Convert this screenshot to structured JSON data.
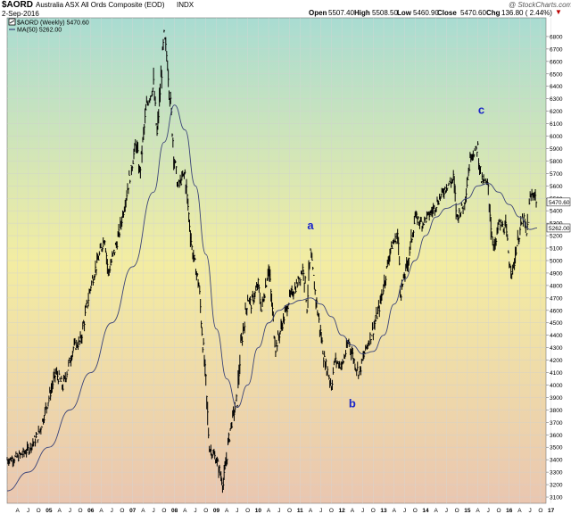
{
  "header": {
    "symbol": "$AORD",
    "description": "Australia ASX All Ords Composite (EOD)",
    "exchange": "INDX",
    "date": "2-Sep-2016",
    "open_label": "Open",
    "open": "5507.40",
    "high_label": "High",
    "high": "5508.50",
    "low_label": "Low",
    "low": "5460.90",
    "close_label": "Close",
    "close": "5470.60",
    "chg_label": "Chg",
    "chg": "136.80 ( 2.44%)",
    "chg_arrow": "▼",
    "watermark": "@ StockCharts.com"
  },
  "legend": {
    "price": "$AORD (Weekly) 5470.60",
    "ma": "MA(50) 5262.00"
  },
  "colors": {
    "bg_top": "#a9dcd2",
    "bg_mid": "#f3eda2",
    "bg_bottom": "#eac6b0",
    "price": "#000000",
    "ma": "#3a4378",
    "wave_label": "#1a25c8",
    "tag_fill": "#ffffff"
  },
  "chart_data": {
    "type": "line",
    "x_unit": "week",
    "x_start": "2004-01",
    "x_end": "2016-09",
    "ylim": [
      3050,
      6950
    ],
    "y_ticks": [
      3100,
      3200,
      3300,
      3400,
      3500,
      3600,
      3700,
      3800,
      3900,
      4000,
      4100,
      4200,
      4300,
      4400,
      4500,
      4600,
      4700,
      4800,
      4900,
      5000,
      5100,
      5200,
      5300,
      5400,
      5500,
      5600,
      5700,
      5800,
      5900,
      6000,
      6100,
      6200,
      6300,
      6400,
      6500,
      6600,
      6700,
      6800
    ],
    "month_labels": [
      "A",
      "J",
      "O",
      "05",
      "A",
      "J",
      "O",
      "06",
      "A",
      "J",
      "O",
      "07",
      "A",
      "J",
      "O",
      "08",
      "A",
      "J",
      "O",
      "09",
      "A",
      "J",
      "O",
      "10",
      "A",
      "J",
      "O",
      "11",
      "A",
      "J",
      "O",
      "12",
      "A",
      "J",
      "O",
      "13",
      "A",
      "J",
      "O",
      "14",
      "A",
      "J",
      "O",
      "15",
      "A",
      "J",
      "O",
      "16",
      "A",
      "J",
      "O",
      "17"
    ],
    "series": [
      {
        "name": "$AORD (Weekly)",
        "style": "weekly-bars",
        "points": [
          [
            "2004-01",
            3400
          ],
          [
            "2004-04",
            3420
          ],
          [
            "2004-07",
            3480
          ],
          [
            "2004-10",
            3600
          ],
          [
            "2005-01",
            3900
          ],
          [
            "2005-03",
            4100
          ],
          [
            "2005-05",
            3990
          ],
          [
            "2005-08",
            4300
          ],
          [
            "2005-10",
            4350
          ],
          [
            "2006-01",
            4800
          ],
          [
            "2006-03",
            5000
          ],
          [
            "2006-05",
            5200
          ],
          [
            "2006-06",
            4900
          ],
          [
            "2006-09",
            5200
          ],
          [
            "2006-12",
            5650
          ],
          [
            "2007-02",
            5950
          ],
          [
            "2007-03",
            5700
          ],
          [
            "2007-05",
            6250
          ],
          [
            "2007-07",
            6400
          ],
          [
            "2007-08",
            6000
          ],
          [
            "2007-10",
            6800
          ],
          [
            "2007-11",
            6600
          ],
          [
            "2008-01",
            5800
          ],
          [
            "2008-02",
            5600
          ],
          [
            "2008-04",
            5700
          ],
          [
            "2008-06",
            5100
          ],
          [
            "2008-08",
            4800
          ],
          [
            "2008-10",
            4000
          ],
          [
            "2008-11",
            3500
          ],
          [
            "2009-01",
            3400
          ],
          [
            "2009-03",
            3200
          ],
          [
            "2009-05",
            3650
          ],
          [
            "2009-07",
            3900
          ],
          [
            "2009-08",
            4300
          ],
          [
            "2009-10",
            4700
          ],
          [
            "2009-11",
            4650
          ],
          [
            "2010-01",
            4800
          ],
          [
            "2010-02",
            4600
          ],
          [
            "2010-04",
            4950
          ],
          [
            "2010-06",
            4300
          ],
          [
            "2010-08",
            4500
          ],
          [
            "2010-10",
            4700
          ],
          [
            "2010-12",
            4800
          ],
          [
            "2011-02",
            4950
          ],
          [
            "2011-03",
            4650
          ],
          [
            "2011-04",
            5050
          ],
          [
            "2011-06",
            4600
          ],
          [
            "2011-08",
            4200
          ],
          [
            "2011-10",
            4000
          ],
          [
            "2011-11",
            4200
          ],
          [
            "2012-01",
            4150
          ],
          [
            "2012-03",
            4350
          ],
          [
            "2012-05",
            4150
          ],
          [
            "2012-06",
            4100
          ],
          [
            "2012-08",
            4300
          ],
          [
            "2012-10",
            4450
          ],
          [
            "2012-12",
            4650
          ],
          [
            "2013-03",
            5100
          ],
          [
            "2013-05",
            5200
          ],
          [
            "2013-06",
            4750
          ],
          [
            "2013-08",
            5000
          ],
          [
            "2013-10",
            5350
          ],
          [
            "2013-12",
            5300
          ],
          [
            "2014-03",
            5400
          ],
          [
            "2014-05",
            5500
          ],
          [
            "2014-07",
            5600
          ],
          [
            "2014-09",
            5650
          ],
          [
            "2014-10",
            5350
          ],
          [
            "2014-12",
            5450
          ],
          [
            "2015-02",
            5850
          ],
          [
            "2015-04",
            5900
          ],
          [
            "2015-05",
            5650
          ],
          [
            "2015-07",
            5600
          ],
          [
            "2015-08",
            5200
          ],
          [
            "2015-09",
            5100
          ],
          [
            "2015-10",
            5300
          ],
          [
            "2015-12",
            5250
          ],
          [
            "2016-01",
            5000
          ],
          [
            "2016-02",
            4900
          ],
          [
            "2016-03",
            5100
          ],
          [
            "2016-05",
            5350
          ],
          [
            "2016-06",
            5200
          ],
          [
            "2016-07",
            5500
          ],
          [
            "2016-08",
            5550
          ],
          [
            "2016-09",
            5470.6
          ]
        ]
      },
      {
        "name": "MA(50)",
        "style": "line",
        "points": [
          [
            "2004-01",
            3150
          ],
          [
            "2004-07",
            3300
          ],
          [
            "2005-01",
            3500
          ],
          [
            "2005-07",
            3800
          ],
          [
            "2006-01",
            4100
          ],
          [
            "2006-07",
            4500
          ],
          [
            "2007-01",
            4950
          ],
          [
            "2007-07",
            5550
          ],
          [
            "2007-10",
            5950
          ],
          [
            "2008-01",
            6250
          ],
          [
            "2008-04",
            6050
          ],
          [
            "2008-07",
            5600
          ],
          [
            "2008-10",
            5050
          ],
          [
            "2009-01",
            4450
          ],
          [
            "2009-04",
            4050
          ],
          [
            "2009-07",
            3820
          ],
          [
            "2009-10",
            4000
          ],
          [
            "2010-01",
            4300
          ],
          [
            "2010-04",
            4500
          ],
          [
            "2010-07",
            4600
          ],
          [
            "2010-10",
            4650
          ],
          [
            "2011-01",
            4680
          ],
          [
            "2011-04",
            4700
          ],
          [
            "2011-07",
            4650
          ],
          [
            "2011-10",
            4550
          ],
          [
            "2012-01",
            4400
          ],
          [
            "2012-04",
            4320
          ],
          [
            "2012-07",
            4250
          ],
          [
            "2012-10",
            4270
          ],
          [
            "2013-01",
            4400
          ],
          [
            "2013-04",
            4650
          ],
          [
            "2013-07",
            4850
          ],
          [
            "2013-10",
            5000
          ],
          [
            "2014-01",
            5200
          ],
          [
            "2014-04",
            5350
          ],
          [
            "2014-07",
            5420
          ],
          [
            "2014-10",
            5450
          ],
          [
            "2015-01",
            5500
          ],
          [
            "2015-04",
            5600
          ],
          [
            "2015-07",
            5620
          ],
          [
            "2015-10",
            5550
          ],
          [
            "2016-01",
            5450
          ],
          [
            "2016-04",
            5350
          ],
          [
            "2016-07",
            5250
          ],
          [
            "2016-09",
            5262
          ]
        ]
      }
    ],
    "annotations": [
      {
        "label": "a",
        "x": "2011-04",
        "y": 5250
      },
      {
        "label": "b",
        "x": "2012-04",
        "y": 3820
      },
      {
        "label": "c",
        "x": "2015-05",
        "y": 6180
      }
    ],
    "last_value_tags": [
      {
        "value": "5470.60",
        "series": "$AORD (Weekly)"
      },
      {
        "value": "5262.00",
        "series": "MA(50)"
      }
    ],
    "grid": true,
    "y_axis_side": "right"
  }
}
